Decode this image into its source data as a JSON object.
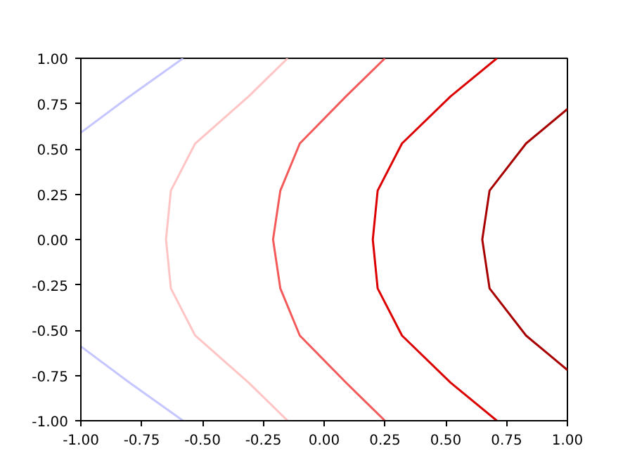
{
  "chart_data": {
    "type": "line",
    "xlim": [
      -1,
      1
    ],
    "ylim": [
      -1,
      1
    ],
    "xticks": [
      {
        "value": -1,
        "label": "-1.00"
      },
      {
        "value": -0.75,
        "label": "-0.75"
      },
      {
        "value": -0.5,
        "label": "-0.50"
      },
      {
        "value": -0.25,
        "label": "-0.25"
      },
      {
        "value": 0,
        "label": "0.00"
      },
      {
        "value": 0.25,
        "label": "0.25"
      },
      {
        "value": 0.5,
        "label": "0.50"
      },
      {
        "value": 0.75,
        "label": "0.75"
      },
      {
        "value": 1,
        "label": "1.00"
      }
    ],
    "yticks": [
      {
        "value": -1,
        "label": "-1.00"
      },
      {
        "value": -0.75,
        "label": "-0.75"
      },
      {
        "value": -0.5,
        "label": "-0.50"
      },
      {
        "value": -0.25,
        "label": "-0.25"
      },
      {
        "value": 0,
        "label": "0.00"
      },
      {
        "value": 0.25,
        "label": "0.25"
      },
      {
        "value": 0.5,
        "label": "0.50"
      },
      {
        "value": 0.75,
        "label": "0.75"
      },
      {
        "value": 1,
        "label": "1.00"
      }
    ],
    "series": [
      {
        "color": "#c6c6ff",
        "x": [
          -1.0,
          -0.8,
          -0.58
        ],
        "values": [
          0.59,
          0.79,
          1.0
        ]
      },
      {
        "color": "#c6c6ff",
        "x": [
          -1.0,
          -0.8,
          -0.58
        ],
        "values": [
          -0.59,
          -0.79,
          -1.0
        ]
      },
      {
        "color": "#ffc4c4",
        "x": [
          -0.15,
          -0.31,
          -0.53,
          -0.63,
          -0.65,
          -0.63,
          -0.53,
          -0.31,
          -0.15
        ],
        "values": [
          1.0,
          0.79,
          0.53,
          0.27,
          0.0,
          -0.27,
          -0.53,
          -0.79,
          -1.0
        ]
      },
      {
        "color": "#f45a5a",
        "x": [
          0.25,
          0.09,
          -0.1,
          -0.18,
          -0.21,
          -0.18,
          -0.1,
          0.09,
          0.25
        ],
        "values": [
          1.0,
          0.79,
          0.53,
          0.27,
          0.0,
          -0.27,
          -0.53,
          -0.79,
          -1.0
        ]
      },
      {
        "color": "#dc0000",
        "x": [
          0.71,
          0.52,
          0.32,
          0.22,
          0.2,
          0.22,
          0.32,
          0.52,
          0.71
        ],
        "values": [
          1.0,
          0.79,
          0.53,
          0.27,
          0.0,
          -0.27,
          -0.53,
          -0.79,
          -1.0
        ]
      },
      {
        "color": "#a80000",
        "x": [
          1.0,
          0.83,
          0.68,
          0.65,
          0.68,
          0.83,
          1.0
        ],
        "values": [
          0.72,
          0.53,
          0.27,
          0.0,
          -0.27,
          -0.53,
          -0.72
        ]
      }
    ]
  }
}
